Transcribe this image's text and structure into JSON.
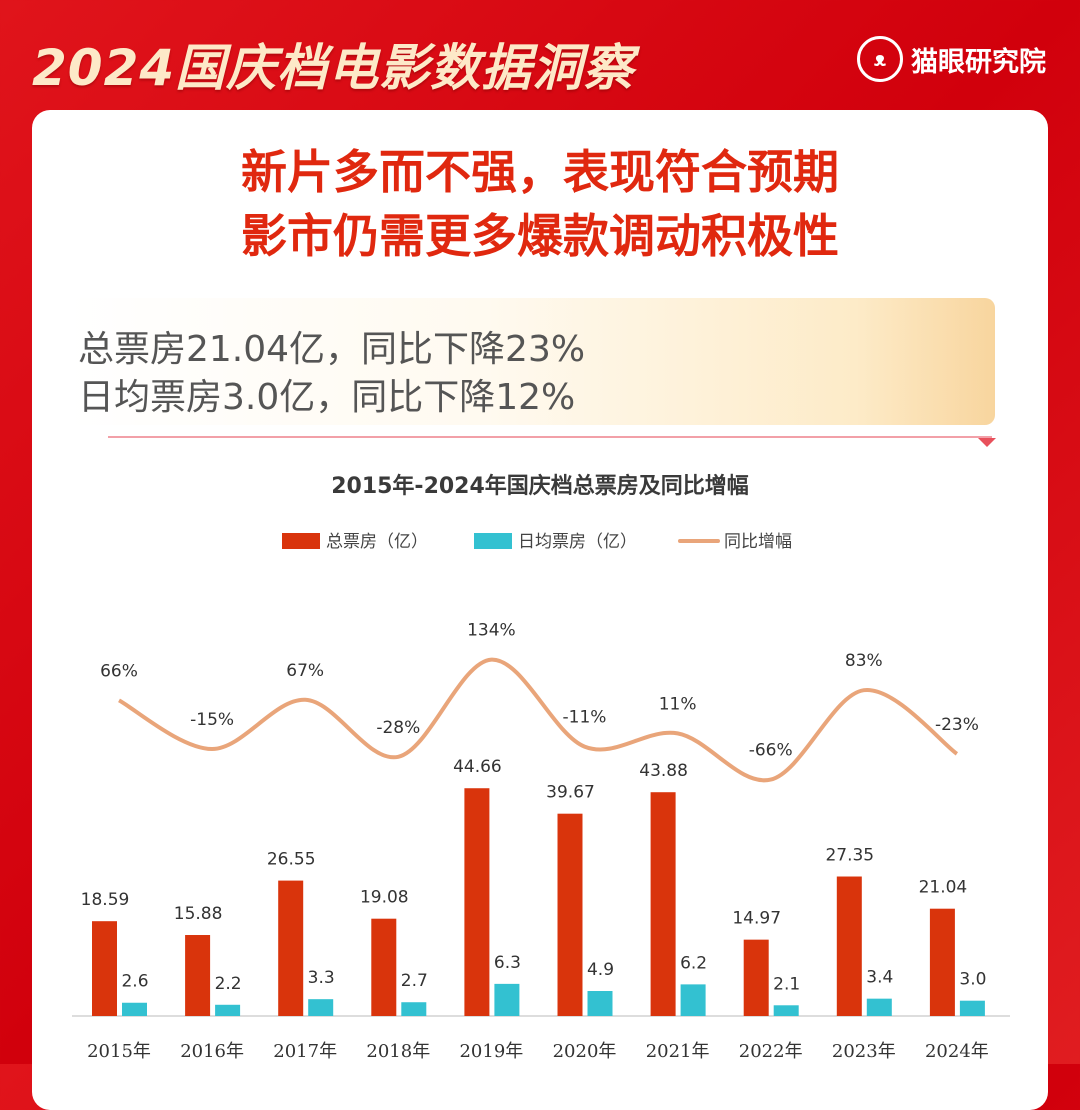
{
  "header": {
    "title": "2024国庆档电影数据洞察",
    "brand": "猫眼研究院"
  },
  "headline": [
    "新片多而不强，表现符合预期",
    "影市仍需更多爆款调动积极性"
  ],
  "summary": [
    "总票房21.04亿，同比下降23%",
    "日均票房3.0亿，同比下降12%"
  ],
  "colors": {
    "red": "#d9340c",
    "cyan": "#33c1d1",
    "line": "#e9a57a"
  },
  "chart_data": {
    "type": "bar",
    "title": "2015年-2024年国庆档总票房及同比增幅",
    "legend": [
      "总票房（亿）",
      "日均票房（亿）",
      "同比增幅"
    ],
    "legend_position": "top",
    "categories": [
      "2015年",
      "2016年",
      "2017年",
      "2018年",
      "2019年",
      "2020年",
      "2021年",
      "2022年",
      "2023年",
      "2024年"
    ],
    "series": [
      {
        "name": "总票房（亿）",
        "type": "bar",
        "values": [
          18.59,
          15.88,
          26.55,
          19.08,
          44.66,
          39.67,
          43.88,
          14.97,
          27.35,
          21.04
        ],
        "labels": [
          "18.59",
          "15.88",
          "26.55",
          "19.08",
          "44.66",
          "39.67",
          "43.88",
          "14.97",
          "27.35",
          "21.04"
        ]
      },
      {
        "name": "日均票房（亿）",
        "type": "bar",
        "values": [
          2.6,
          2.2,
          3.3,
          2.7,
          6.3,
          4.9,
          6.2,
          2.1,
          3.4,
          3.0
        ],
        "labels": [
          "2.6",
          "2.2",
          "3.3",
          "2.7",
          "6.3",
          "4.9",
          "6.2",
          "2.1",
          "3.4",
          "3.0"
        ]
      },
      {
        "name": "同比增幅",
        "type": "line",
        "values": [
          66,
          -15,
          67,
          -28,
          134,
          -11,
          11,
          -66,
          83,
          -23
        ],
        "labels": [
          "66%",
          "-15%",
          "67%",
          "-28%",
          "134%",
          "-11%",
          "11%",
          "-66%",
          "83%",
          "-23%"
        ]
      }
    ]
  }
}
